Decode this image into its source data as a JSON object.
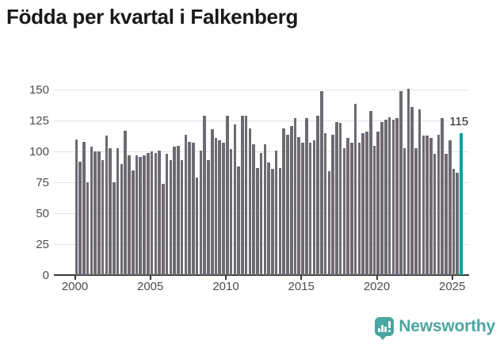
{
  "title": "Födda per kvartal i Falkenberg",
  "annotation": {
    "last_value_label": "115"
  },
  "branding": {
    "logo_text": "Newsworthy",
    "logo_color": "#4BA5A0"
  },
  "colors": {
    "bar": "#6e6a72",
    "highlight": "#00a3a0",
    "grid": "#e3e3e3",
    "axis": "#3a3a3a",
    "tick_label": "#4d4d4d",
    "title": "#191919"
  },
  "chart_data": {
    "type": "bar",
    "title": "Födda per kvartal i Falkenberg",
    "xlabel": "",
    "ylabel": "",
    "unit": "födda per kvartal (births per quarter)",
    "start_period": "2000-Q1",
    "end_period": "2025-Q3",
    "x_tick_labels": [
      "2000",
      "2005",
      "2010",
      "2015",
      "2020",
      "2025"
    ],
    "y_ticks": [
      0,
      25,
      50,
      75,
      100,
      125,
      150
    ],
    "ylim": [
      0,
      150
    ],
    "grid": true,
    "highlight_last": true,
    "last_value": 115,
    "values": [
      110,
      92,
      108,
      75,
      104,
      100,
      100,
      93,
      113,
      103,
      75,
      103,
      90,
      117,
      97,
      85,
      97,
      96,
      97,
      99,
      100,
      99,
      101,
      74,
      98,
      93,
      104,
      105,
      93,
      114,
      108,
      107,
      79,
      101,
      129,
      93,
      118,
      111,
      109,
      107,
      129,
      102,
      122,
      88,
      129,
      129,
      119,
      106,
      87,
      99,
      106,
      91,
      86,
      101,
      87,
      119,
      114,
      121,
      127,
      112,
      107,
      127,
      107,
      109,
      129,
      149,
      115,
      84,
      114,
      124,
      123,
      103,
      111,
      107,
      139,
      107,
      115,
      116,
      133,
      105,
      116,
      124,
      126,
      128,
      126,
      127,
      149,
      103,
      151,
      136,
      103,
      134,
      113,
      113,
      111,
      98,
      114,
      127,
      98,
      109,
      86,
      83,
      115
    ]
  }
}
